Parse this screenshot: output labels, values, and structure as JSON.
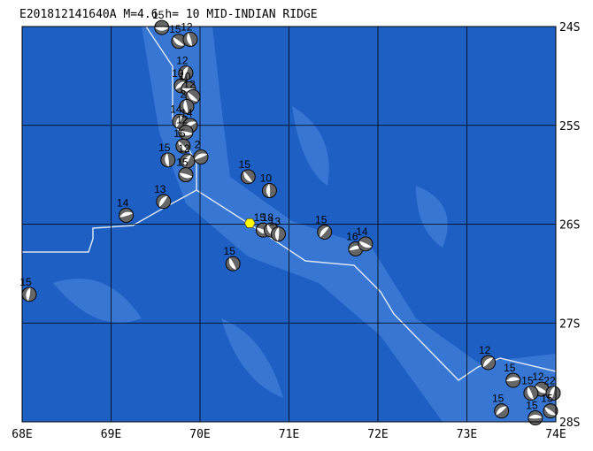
{
  "map": {
    "title": "E201812141640A M=4.6 h= 10 MID-INDIAN RIDGE",
    "xlim": [
      68,
      74
    ],
    "ylim": [
      -28,
      -24
    ],
    "xticks": [
      {
        "value": 68,
        "label": "68E"
      },
      {
        "value": 69,
        "label": "69E"
      },
      {
        "value": 70,
        "label": "70E"
      },
      {
        "value": 71,
        "label": "71E"
      },
      {
        "value": 72,
        "label": "72E"
      },
      {
        "value": 73,
        "label": "73E"
      },
      {
        "value": 74,
        "label": "74E"
      }
    ],
    "yticks": [
      {
        "value": -24,
        "label": "24S"
      },
      {
        "value": -25,
        "label": "25S"
      },
      {
        "value": -26,
        "label": "26S"
      },
      {
        "value": -27,
        "label": "27S"
      },
      {
        "value": -28,
        "label": "28S"
      }
    ],
    "epicenter": {
      "lon": 70.56,
      "lat": -25.99
    },
    "events": [
      {
        "lon": 69.57,
        "lat": -24.01,
        "depth": 15
      },
      {
        "lon": 69.76,
        "lat": -24.15,
        "depth": 15
      },
      {
        "lon": 69.89,
        "lat": -24.13,
        "depth": 12
      },
      {
        "lon": 69.84,
        "lat": -24.47,
        "depth": 12
      },
      {
        "lon": 69.79,
        "lat": -24.6,
        "depth": 10
      },
      {
        "lon": 69.87,
        "lat": -24.63,
        "depth": 10
      },
      {
        "lon": 69.92,
        "lat": -24.71,
        "depth": 12
      },
      {
        "lon": 69.85,
        "lat": -24.81,
        "depth": 2
      },
      {
        "lon": 69.77,
        "lat": -24.96,
        "depth": 14
      },
      {
        "lon": 69.89,
        "lat": -25.0,
        "depth": 14
      },
      {
        "lon": 69.84,
        "lat": -25.07,
        "depth": 12
      },
      {
        "lon": 69.81,
        "lat": -25.21,
        "depth": 15
      },
      {
        "lon": 69.64,
        "lat": -25.35,
        "depth": 15
      },
      {
        "lon": 69.86,
        "lat": -25.36,
        "depth": 12
      },
      {
        "lon": 70.01,
        "lat": -25.32,
        "depth": 2
      },
      {
        "lon": 69.84,
        "lat": -25.5,
        "depth": 15
      },
      {
        "lon": 70.54,
        "lat": -25.52,
        "depth": 15
      },
      {
        "lon": 70.78,
        "lat": -25.66,
        "depth": 10
      },
      {
        "lon": 69.59,
        "lat": -25.77,
        "depth": 13
      },
      {
        "lon": 69.17,
        "lat": -25.91,
        "depth": 14
      },
      {
        "lon": 70.71,
        "lat": -26.06,
        "depth": 15
      },
      {
        "lon": 70.8,
        "lat": -26.06,
        "depth": 18
      },
      {
        "lon": 70.88,
        "lat": -26.1,
        "depth": 13
      },
      {
        "lon": 71.4,
        "lat": -26.08,
        "depth": 15
      },
      {
        "lon": 71.75,
        "lat": -26.25,
        "depth": 16
      },
      {
        "lon": 71.86,
        "lat": -26.2,
        "depth": 14
      },
      {
        "lon": 70.37,
        "lat": -26.4,
        "depth": 15
      },
      {
        "lon": 68.08,
        "lat": -26.71,
        "depth": 15
      },
      {
        "lon": 73.24,
        "lat": -27.4,
        "depth": 12
      },
      {
        "lon": 73.52,
        "lat": -27.58,
        "depth": 15
      },
      {
        "lon": 73.84,
        "lat": -27.67,
        "depth": 12
      },
      {
        "lon": 73.72,
        "lat": -27.71,
        "depth": 15
      },
      {
        "lon": 73.97,
        "lat": -27.71,
        "depth": 22
      },
      {
        "lon": 73.39,
        "lat": -27.89,
        "depth": 15
      },
      {
        "lon": 73.77,
        "lat": -27.96,
        "depth": 15
      },
      {
        "lon": 73.94,
        "lat": -27.89,
        "depth": 15
      }
    ]
  }
}
